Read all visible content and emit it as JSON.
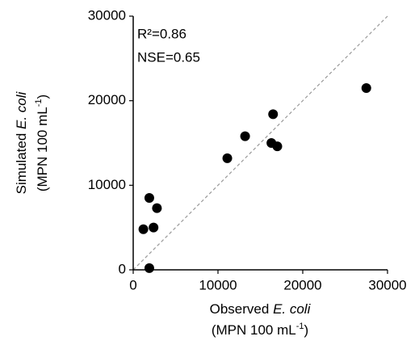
{
  "chart_data": {
    "type": "scatter",
    "x": [
      1900,
      1200,
      2400,
      2800,
      1900,
      11100,
      13200,
      16500,
      16300,
      17000,
      27500
    ],
    "values": [
      200,
      4800,
      5000,
      7300,
      8500,
      13200,
      15800,
      18400,
      15000,
      14600,
      21500
    ],
    "color": "#000000",
    "xlim": [
      0,
      30000
    ],
    "ylim": [
      0,
      30000
    ],
    "xticks": [
      0,
      10000,
      20000,
      30000
    ],
    "yticks": [
      0,
      10000,
      20000,
      30000
    ],
    "x_label": [
      "Observed ",
      "E. coli"
    ],
    "x_label_units": [
      "(MPN 100 mL",
      "-1",
      ")"
    ],
    "y_label": [
      "Simulated ",
      "E. coli"
    ],
    "y_label_units": [
      "(MPN 100 mL",
      "-1",
      ")"
    ],
    "annotations": [
      "R²=0.86",
      "NSE=0.65"
    ],
    "reference_line_color": "#999999"
  }
}
